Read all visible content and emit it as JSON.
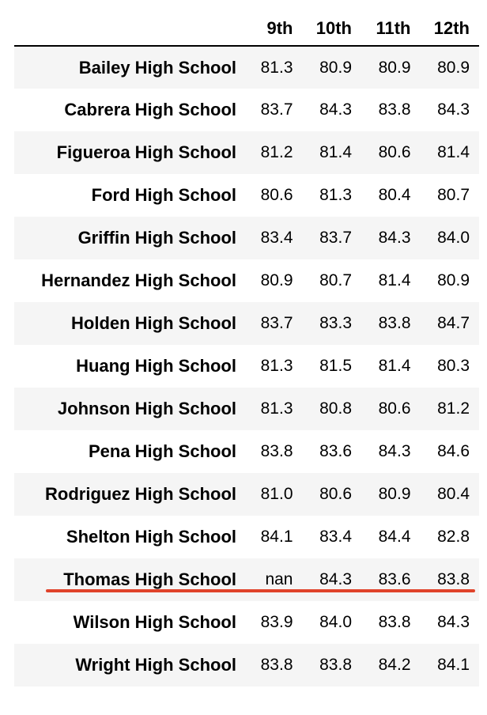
{
  "columns": [
    "9th",
    "10th",
    "11th",
    "12th"
  ],
  "rows": [
    {
      "school": "Bailey High School",
      "values": [
        "81.3",
        "80.9",
        "80.9",
        "80.9"
      ]
    },
    {
      "school": "Cabrera High School",
      "values": [
        "83.7",
        "84.3",
        "83.8",
        "84.3"
      ]
    },
    {
      "school": "Figueroa High School",
      "values": [
        "81.2",
        "81.4",
        "80.6",
        "81.4"
      ]
    },
    {
      "school": "Ford High School",
      "values": [
        "80.6",
        "81.3",
        "80.4",
        "80.7"
      ]
    },
    {
      "school": "Griffin High School",
      "values": [
        "83.4",
        "83.7",
        "84.3",
        "84.0"
      ]
    },
    {
      "school": "Hernandez High School",
      "values": [
        "80.9",
        "80.7",
        "81.4",
        "80.9"
      ]
    },
    {
      "school": "Holden High School",
      "values": [
        "83.7",
        "83.3",
        "83.8",
        "84.7"
      ]
    },
    {
      "school": "Huang High School",
      "values": [
        "81.3",
        "81.5",
        "81.4",
        "80.3"
      ]
    },
    {
      "school": "Johnson High School",
      "values": [
        "81.3",
        "80.8",
        "80.6",
        "81.2"
      ]
    },
    {
      "school": "Pena High School",
      "values": [
        "83.8",
        "83.6",
        "84.3",
        "84.6"
      ]
    },
    {
      "school": "Rodriguez High School",
      "values": [
        "81.0",
        "80.6",
        "80.9",
        "80.4"
      ]
    },
    {
      "school": "Shelton High School",
      "values": [
        "84.1",
        "83.4",
        "84.4",
        "82.8"
      ]
    },
    {
      "school": "Thomas High School",
      "values": [
        "nan",
        "84.3",
        "83.6",
        "83.8"
      ]
    },
    {
      "school": "Wilson High School",
      "values": [
        "83.9",
        "84.0",
        "83.8",
        "84.3"
      ]
    },
    {
      "school": "Wright High School",
      "values": [
        "83.8",
        "83.8",
        "84.2",
        "84.1"
      ]
    }
  ],
  "highlight": {
    "row_school": "Thomas High School",
    "color": "#e0432b"
  },
  "colors": {
    "stripe": "#f5f5f5",
    "header_rule": "#000000"
  }
}
